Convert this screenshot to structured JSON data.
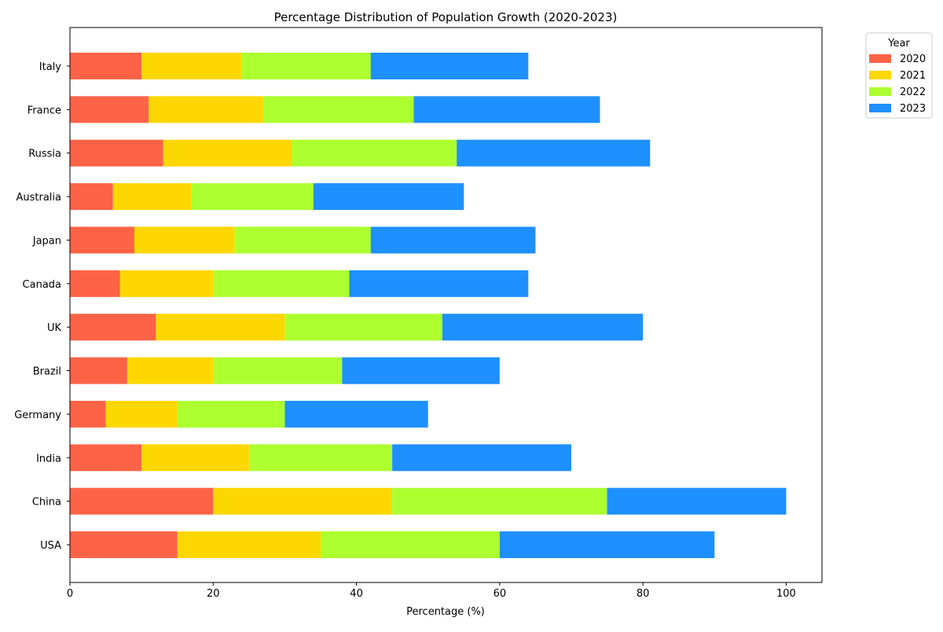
{
  "chart_data": {
    "type": "bar",
    "orientation": "horizontal",
    "stacked": true,
    "title": "Percentage Distribution of Population Growth (2020-2023)",
    "xlabel": "Percentage (%)",
    "ylabel": "",
    "xlim": [
      0,
      105
    ],
    "xticks": [
      0,
      20,
      40,
      60,
      80,
      100
    ],
    "grid": false,
    "legend": {
      "title": "Year",
      "placement": "upper right, outside plot"
    },
    "categories": [
      "USA",
      "China",
      "India",
      "Germany",
      "Brazil",
      "UK",
      "Canada",
      "Japan",
      "Australia",
      "Russia",
      "France",
      "Italy"
    ],
    "series": [
      {
        "name": "2020",
        "color": "#FF6347",
        "values": [
          15,
          20,
          10,
          5,
          8,
          12,
          7,
          9,
          6,
          13,
          11,
          10
        ]
      },
      {
        "name": "2021",
        "color": "#FFD700",
        "values": [
          20,
          25,
          15,
          10,
          12,
          18,
          13,
          14,
          11,
          18,
          16,
          14
        ]
      },
      {
        "name": "2022",
        "color": "#ADFF2F",
        "values": [
          25,
          30,
          20,
          15,
          18,
          22,
          19,
          19,
          17,
          23,
          21,
          18
        ]
      },
      {
        "name": "2023",
        "color": "#1E90FF",
        "values": [
          30,
          25,
          25,
          20,
          22,
          28,
          25,
          23,
          21,
          27,
          26,
          22
        ]
      }
    ]
  }
}
